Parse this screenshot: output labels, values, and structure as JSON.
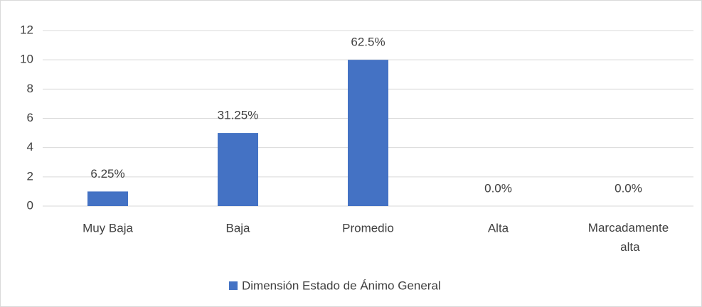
{
  "chart_data": {
    "type": "bar",
    "categories": [
      "Muy Baja",
      "Baja",
      "Promedio",
      "Alta",
      "Marcadamente alta"
    ],
    "series": [
      {
        "name": "Dimensión Estado de Ánimo General",
        "color": "#4472c4",
        "values": [
          1,
          5,
          10,
          0,
          0
        ],
        "value_labels": [
          "6.25%",
          "31.25%",
          "62.5%",
          "0.0%",
          "0.0%"
        ]
      }
    ],
    "ylim": [
      0,
      12
    ],
    "yticks": [
      0,
      2,
      4,
      6,
      8,
      10,
      12
    ],
    "grid": true,
    "legend": "bottom"
  }
}
